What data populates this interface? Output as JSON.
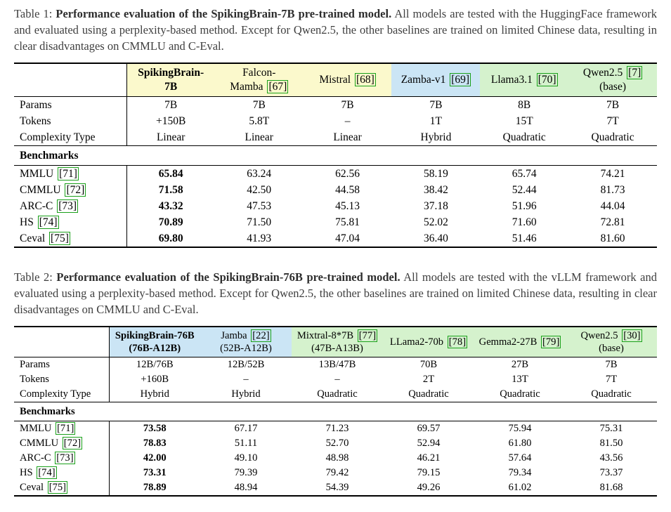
{
  "colors": {
    "header_yellow": "#fbf9cc",
    "header_blue": "#cbe5f5",
    "header_green": "#d5f2cd",
    "citation_green": "#1aa01a"
  },
  "tables": [
    {
      "caption": {
        "prefix": "Table 1: ",
        "bold": "Performance evaluation of the SpikingBrain-7B pre-trained model.",
        "rest": " All models are tested with the HuggingFace framework and evaluated using a perplexity-based method. Except for Qwen2.5, the other baselines are trained on limited Chinese data, resulting in clear disadvantages on CMMLU and C-Eval."
      },
      "columns": [
        {
          "l1": "SpikingBrain-",
          "l1cite": "",
          "l2": "7B",
          "l2cite": "",
          "bg": "yellow",
          "bold": true
        },
        {
          "l1": "Falcon-",
          "l1cite": "",
          "l2": "Mamba",
          "l2cite": "67",
          "bg": "yellow",
          "bold": false
        },
        {
          "l1": "Mistral",
          "l1cite": "68",
          "l2": "",
          "l2cite": "",
          "bg": "yellow",
          "bold": false
        },
        {
          "l1": "Zamba-v1",
          "l1cite": "69",
          "l2": "",
          "l2cite": "",
          "bg": "blue",
          "bold": false
        },
        {
          "l1": "Llama3.1",
          "l1cite": "70",
          "l2": "",
          "l2cite": "",
          "bg": "green",
          "bold": false
        },
        {
          "l1": "Qwen2.5",
          "l1cite": "7",
          "l2": "(base)",
          "l2cite": "",
          "bg": "green",
          "bold": false
        }
      ],
      "spec_rows": [
        {
          "label": "Params",
          "values": [
            "7B",
            "7B",
            "7B",
            "7B",
            "8B",
            "7B"
          ]
        },
        {
          "label": "Tokens",
          "values": [
            "+150B",
            "5.8T",
            "–",
            "1T",
            "15T",
            "7T"
          ]
        },
        {
          "label": "Complexity Type",
          "values": [
            "Linear",
            "Linear",
            "Linear",
            "Hybrid",
            "Quadratic",
            "Quadratic"
          ]
        }
      ],
      "section_label": "Benchmarks",
      "bold_value_col": 0,
      "benchmark_rows": [
        {
          "label": "MMLU",
          "cite": "71",
          "values": [
            "65.84",
            "63.24",
            "62.56",
            "58.19",
            "65.74",
            "74.21"
          ]
        },
        {
          "label": "CMMLU",
          "cite": "72",
          "values": [
            "71.58",
            "42.50",
            "44.58",
            "38.42",
            "52.44",
            "81.73"
          ]
        },
        {
          "label": "ARC-C",
          "cite": "73",
          "values": [
            "43.32",
            "47.53",
            "45.13",
            "37.18",
            "51.96",
            "44.04"
          ]
        },
        {
          "label": "HS",
          "cite": "74",
          "values": [
            "70.89",
            "71.50",
            "75.81",
            "52.02",
            "71.60",
            "72.81"
          ]
        },
        {
          "label": "Ceval",
          "cite": "75",
          "values": [
            "69.80",
            "41.93",
            "47.04",
            "36.40",
            "51.46",
            "81.60"
          ]
        }
      ]
    },
    {
      "caption": {
        "prefix": "Table 2: ",
        "bold": "Performance evaluation of the SpikingBrain-76B pre-trained model.",
        "rest": " All models are tested with the vLLM framework and evaluated using a perplexity-based method. Except for Qwen2.5, the other baselines are trained on limited Chinese data, resulting in clear disadvantages on CMMLU and C-Eval."
      },
      "columns": [
        {
          "l1": "SpikingBrain-76B",
          "l1cite": "",
          "l2": "(76B-A12B)",
          "l2cite": "",
          "bg": "blue",
          "bold": true
        },
        {
          "l1": "Jamba",
          "l1cite": "22",
          "l2": "(52B-A12B)",
          "l2cite": "",
          "bg": "blue",
          "bold": false
        },
        {
          "l1": "Mixtral-8*7B",
          "l1cite": "77",
          "l2": "(47B-A13B)",
          "l2cite": "",
          "bg": "green",
          "bold": false
        },
        {
          "l1": "LLama2-70b",
          "l1cite": "78",
          "l2": "",
          "l2cite": "",
          "bg": "green",
          "bold": false
        },
        {
          "l1": "Gemma2-27B",
          "l1cite": "79",
          "l2": "",
          "l2cite": "",
          "bg": "green",
          "bold": false
        },
        {
          "l1": "Qwen2.5",
          "l1cite": "30",
          "l2": "(base)",
          "l2cite": "",
          "bg": "green",
          "bold": false
        }
      ],
      "spec_rows": [
        {
          "label": "Params",
          "values": [
            "12B/76B",
            "12B/52B",
            "13B/47B",
            "70B",
            "27B",
            "7B"
          ]
        },
        {
          "label": "Tokens",
          "values": [
            "+160B",
            "–",
            "–",
            "2T",
            "13T",
            "7T"
          ]
        },
        {
          "label": "Complexity Type",
          "values": [
            "Hybrid",
            "Hybrid",
            "Quadratic",
            "Quadratic",
            "Quadratic",
            "Quadratic"
          ]
        }
      ],
      "section_label": "Benchmarks",
      "bold_value_col": 0,
      "benchmark_rows": [
        {
          "label": "MMLU",
          "cite": "71",
          "values": [
            "73.58",
            "67.17",
            "71.23",
            "69.57",
            "75.94",
            "75.31"
          ]
        },
        {
          "label": "CMMLU",
          "cite": "72",
          "values": [
            "78.83",
            "51.11",
            "52.70",
            "52.94",
            "61.80",
            "81.50"
          ]
        },
        {
          "label": "ARC-C",
          "cite": "73",
          "values": [
            "42.00",
            "49.10",
            "48.98",
            "46.21",
            "57.64",
            "43.56"
          ]
        },
        {
          "label": "HS",
          "cite": "74",
          "values": [
            "73.31",
            "79.39",
            "79.42",
            "79.15",
            "79.34",
            "73.37"
          ]
        },
        {
          "label": "Ceval",
          "cite": "75",
          "values": [
            "78.89",
            "48.94",
            "54.39",
            "49.26",
            "61.02",
            "81.68"
          ]
        }
      ]
    }
  ]
}
